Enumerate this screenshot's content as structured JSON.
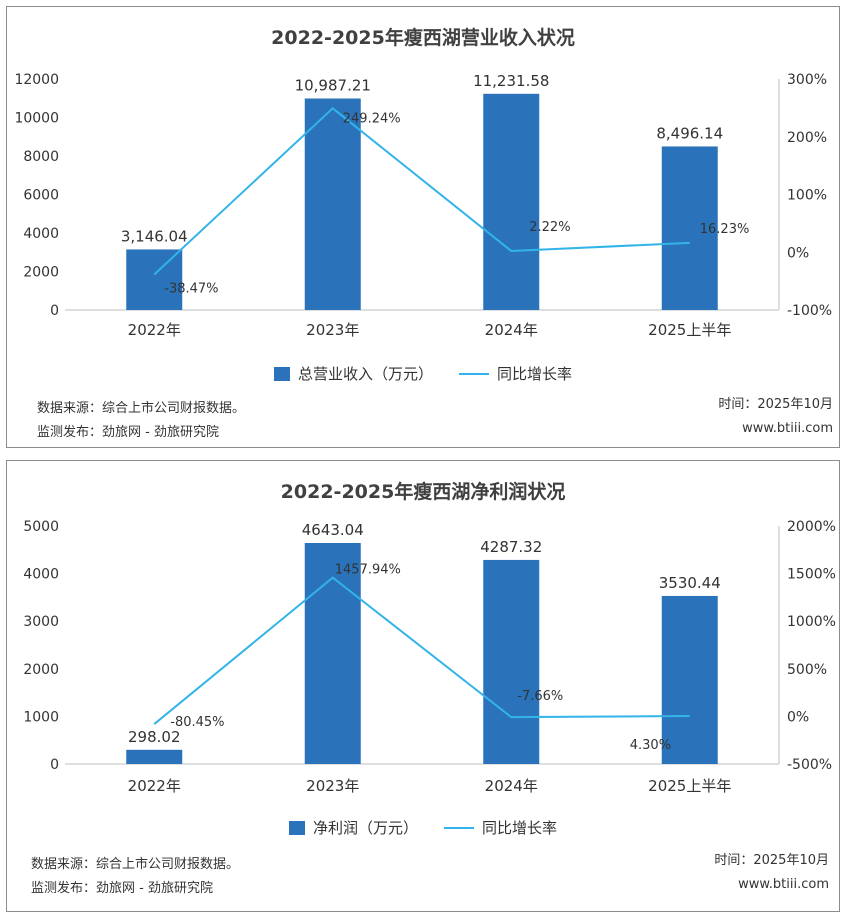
{
  "chart_data": [
    {
      "type": "bar",
      "title": "2022-2025年瘦西湖营业收入状况",
      "categories": [
        "2022年",
        "2023年",
        "2024年",
        "2025上半年"
      ],
      "y_ticks": [
        "0",
        "2000",
        "4000",
        "6000",
        "8000",
        "10000",
        "12000"
      ],
      "y2_ticks": [
        "-100%",
        "0%",
        "100%",
        "200%",
        "300%"
      ],
      "ylim": [
        0,
        12000
      ],
      "y2lim": [
        -100,
        300
      ],
      "series": [
        {
          "name": "总营业收入（万元）",
          "type": "bar",
          "values": [
            3146.04,
            10987.21,
            11231.58,
            8496.14
          ],
          "labels": [
            "3,146.04",
            "10,987.21",
            "11,231.58",
            "8,496.14"
          ]
        },
        {
          "name": "同比增长率",
          "type": "line",
          "axis": "right",
          "values": [
            -38.47,
            249.24,
            2.22,
            16.23
          ],
          "labels": [
            "-38.47%",
            "249.24%",
            "2.22%",
            "16.23%"
          ]
        }
      ],
      "legend": "bottom",
      "source": "数据来源：综合上市公司财报数据。",
      "publisher": "监测发布：劲旅网 - 劲旅研究院",
      "time": "时间：2025年10月",
      "website": "www.btiii.com"
    },
    {
      "type": "bar",
      "title": "2022-2025年瘦西湖净利润状况",
      "categories": [
        "2022年",
        "2023年",
        "2024年",
        "2025上半年"
      ],
      "y_ticks": [
        "0",
        "1000",
        "2000",
        "3000",
        "4000",
        "5000"
      ],
      "y2_ticks": [
        "-500%",
        "0%",
        "500%",
        "1000%",
        "1500%",
        "2000%"
      ],
      "ylim": [
        0,
        5000
      ],
      "y2lim": [
        -500,
        2000
      ],
      "series": [
        {
          "name": "净利润（万元）",
          "type": "bar",
          "values": [
            298.02,
            4643.04,
            4287.32,
            3530.44
          ],
          "labels": [
            "298.02",
            "4643.04",
            "4287.32",
            "3530.44"
          ]
        },
        {
          "name": "同比增长率",
          "type": "line",
          "axis": "right",
          "values": [
            -80.45,
            1457.94,
            -7.66,
            4.3
          ],
          "labels": [
            "-80.45%",
            "1457.94%",
            "-7.66%",
            "4.30%"
          ]
        }
      ],
      "legend": "bottom",
      "source": "数据来源：综合上市公司财报数据。",
      "publisher": "监测发布：劲旅网 - 劲旅研究院",
      "time": "时间：2025年10月",
      "website": "www.btiii.com"
    }
  ],
  "colors": {
    "bar": "#2a73ba",
    "line": "#33b4e8",
    "axis": "#bfbfbf"
  }
}
